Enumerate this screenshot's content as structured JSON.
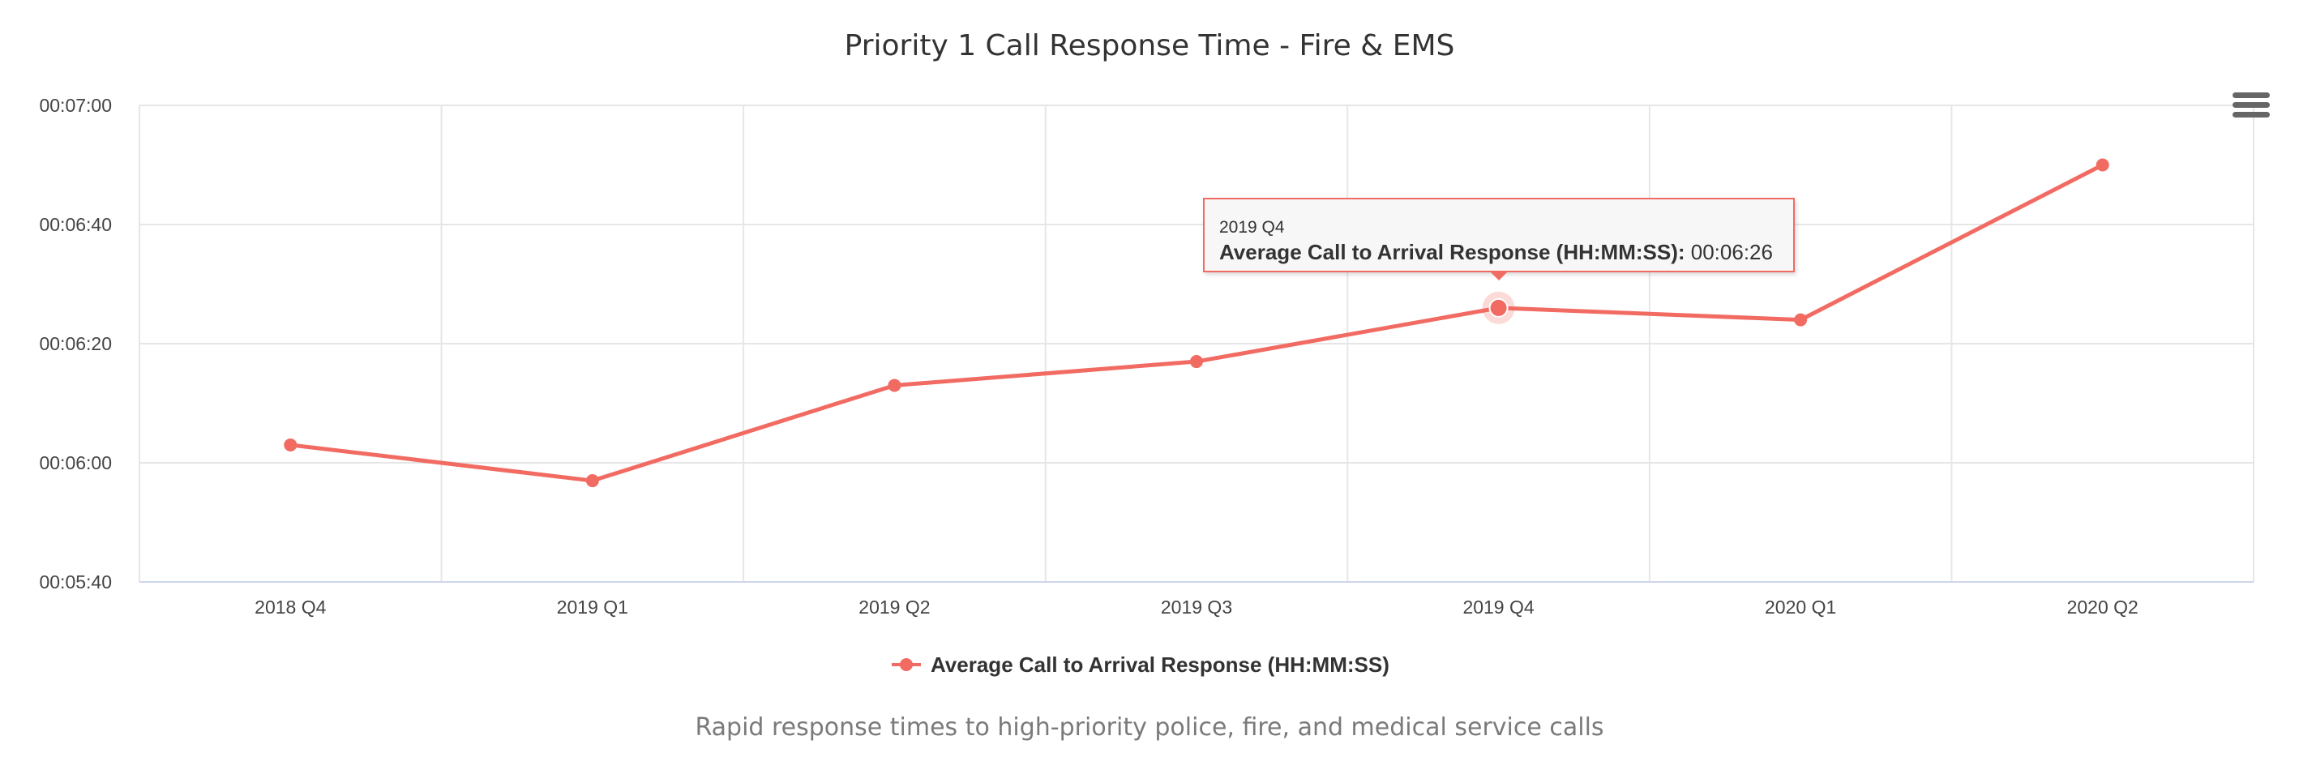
{
  "chart_data": {
    "type": "line",
    "title": "Priority 1 Call Response Time - Fire & EMS",
    "caption": "Rapid response times to high-priority police, fire, and medical service calls",
    "categories": [
      "2018 Q4",
      "2019 Q1",
      "2019 Q2",
      "2019 Q3",
      "2019 Q4",
      "2020 Q1",
      "2020 Q2"
    ],
    "series": [
      {
        "name": "Average Call to Arrival Response (HH:MM:SS)",
        "values": [
          "00:06:03",
          "00:05:57",
          "00:06:13",
          "00:06:17",
          "00:06:26",
          "00:06:24",
          "00:06:50"
        ],
        "color": "#f26b63"
      }
    ],
    "y_ticks": [
      "00:05:40",
      "00:06:00",
      "00:06:20",
      "00:06:40",
      "00:07:00"
    ],
    "ylim": [
      "00:05:40",
      "00:07:00"
    ],
    "grid": true,
    "legend_position": "bottom-center",
    "tooltip": {
      "x": "2019 Q4",
      "series_label": "Average Call to Arrival Response (HH:MM:SS):",
      "value": "00:06:26"
    }
  },
  "colors": {
    "series": "#f26b63",
    "grid": "#e6e6e6",
    "axis": "#ccd6eb"
  },
  "icons": {
    "menu": "hamburger-menu-icon"
  }
}
